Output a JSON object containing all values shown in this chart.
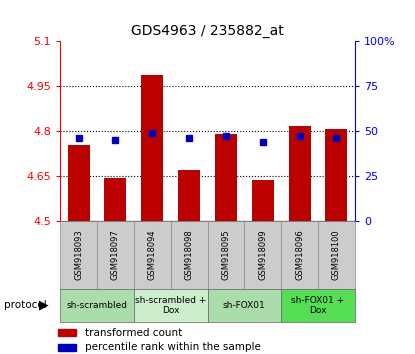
{
  "title": "GDS4963 / 235882_at",
  "samples": [
    "GSM918093",
    "GSM918097",
    "GSM918094",
    "GSM918098",
    "GSM918095",
    "GSM918099",
    "GSM918096",
    "GSM918100"
  ],
  "transformed_count": [
    4.755,
    4.645,
    4.985,
    4.67,
    4.79,
    4.638,
    4.815,
    4.805
  ],
  "percentile_rank": [
    46,
    45,
    49,
    46,
    47,
    44,
    47,
    46
  ],
  "ylim_left": [
    4.5,
    5.1
  ],
  "ylim_right": [
    0,
    100
  ],
  "yticks_left": [
    4.5,
    4.65,
    4.8,
    4.95,
    5.1
  ],
  "ytick_labels_left": [
    "4.5",
    "4.65",
    "4.8",
    "4.95",
    "5.1"
  ],
  "yticks_right": [
    0,
    25,
    50,
    75,
    100
  ],
  "ytick_labels_right": [
    "0",
    "25",
    "50",
    "75",
    "100%"
  ],
  "grid_yticks": [
    4.65,
    4.8,
    4.95
  ],
  "bar_color": "#BB0000",
  "marker_color": "#0000BB",
  "bar_bottom": 4.5,
  "protocols": [
    {
      "label": "sh-scrambled",
      "start": 0,
      "end": 2,
      "color": "#AADDAA"
    },
    {
      "label": "sh-scrambled +\nDox",
      "start": 2,
      "end": 4,
      "color": "#CCEECC"
    },
    {
      "label": "sh-FOX01",
      "start": 4,
      "end": 6,
      "color": "#AADDAA"
    },
    {
      "label": "sh-FOX01 +\nDox",
      "start": 6,
      "end": 8,
      "color": "#55DD55"
    }
  ],
  "legend_bar_label": "transformed count",
  "legend_marker_label": "percentile rank within the sample",
  "protocol_label": "protocol",
  "bar_width": 0.6,
  "sample_bg": "#CCCCCC",
  "spine_color": "#000000"
}
